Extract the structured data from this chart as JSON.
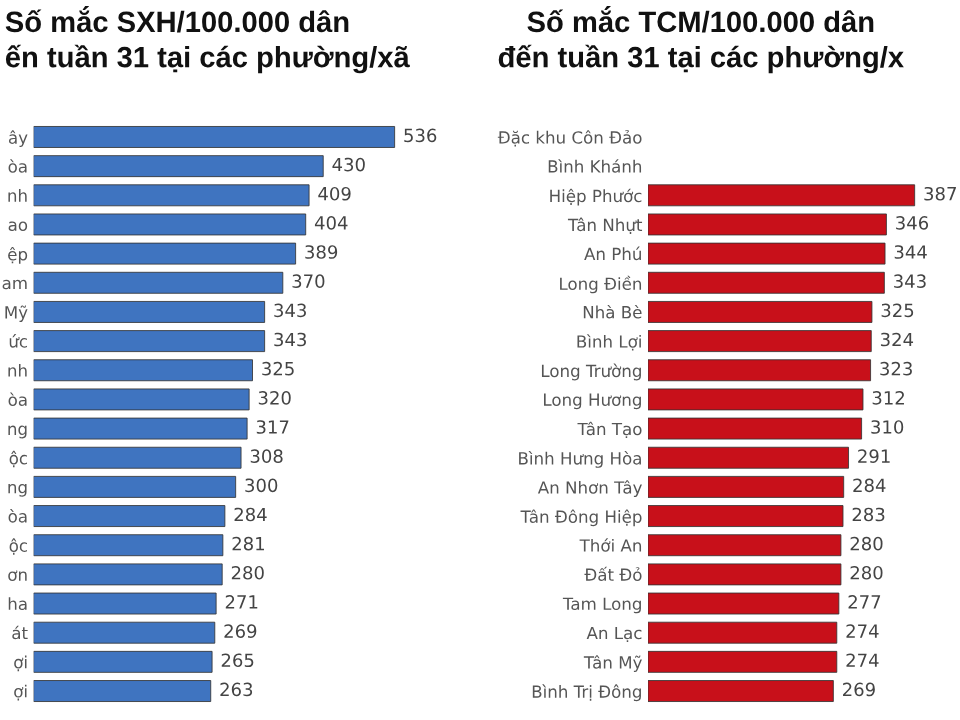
{
  "chart_data": [
    {
      "type": "bar",
      "orientation": "horizontal",
      "title": "Số mắc SXH/100.000 dân\nến tuần 31 tại các phường/xã",
      "categories": [
        "ây",
        "òa",
        "nh",
        "ao",
        "ệp",
        "am",
        "Mỹ",
        "ức",
        "nh",
        "òa",
        "ng",
        "ộc",
        "ng",
        "òa",
        "ộc",
        "ơn",
        "ha",
        "át",
        "ợi",
        "ợi"
      ],
      "values": [
        536,
        430,
        409,
        404,
        389,
        370,
        343,
        343,
        325,
        320,
        317,
        308,
        300,
        284,
        281,
        280,
        271,
        269,
        265,
        263
      ],
      "color": "#3f74c0",
      "data_labels": true,
      "grid": false,
      "legend": false
    },
    {
      "type": "bar",
      "orientation": "horizontal",
      "title": "Số mắc TCM/100.000 dân\nđến tuần 31 tại các phường/x",
      "categories": [
        "Đặc khu Côn Đảo",
        "Bình Khánh",
        "Hiệp Phước",
        "Tân Nhựt",
        "An Phú",
        "Long Điền",
        "Nhà Bè",
        "Bình Lợi",
        "Long Trường",
        "Long Hương",
        "Tân Tạo",
        "Bình Hưng Hòa",
        "An Nhơn Tây",
        "Tân Đông Hiệp",
        "Thới An",
        "Đất Đỏ",
        "Tam Long",
        "An Lạc",
        "Tân Mỹ",
        "Bình Trị Đông"
      ],
      "values": [
        null,
        null,
        387,
        346,
        344,
        343,
        325,
        324,
        323,
        312,
        310,
        291,
        284,
        283,
        280,
        280,
        277,
        274,
        274,
        269
      ],
      "color": "#c8101a",
      "data_labels": true,
      "grid": false,
      "legend": false
    }
  ]
}
